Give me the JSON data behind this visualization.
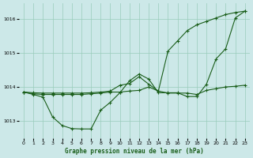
{
  "xlabel": "Graphe pression niveau de la mer (hPa)",
  "ylim": [
    1012.5,
    1016.45
  ],
  "xlim": [
    -0.5,
    23.5
  ],
  "yticks": [
    1013,
    1014,
    1015,
    1016
  ],
  "xticks": [
    0,
    1,
    2,
    3,
    4,
    5,
    6,
    7,
    8,
    9,
    10,
    11,
    12,
    13,
    14,
    15,
    16,
    17,
    18,
    19,
    20,
    21,
    22,
    23
  ],
  "bg_color": "#cce8e8",
  "grid_color": "#99ccbb",
  "line_color": "#1a5e1a",
  "line_A_x": [
    0,
    1,
    2,
    3,
    4,
    5,
    6,
    7,
    8,
    9,
    10,
    11,
    12,
    13,
    14,
    15,
    16,
    17,
    18,
    19,
    20,
    21,
    22,
    23
  ],
  "line_A_y": [
    1013.85,
    1013.78,
    1013.7,
    1013.12,
    1012.87,
    1012.78,
    1012.77,
    1012.77,
    1013.32,
    1013.55,
    1013.83,
    1014.18,
    1014.38,
    1014.23,
    1013.83,
    1013.83,
    1013.83,
    1013.72,
    1013.72,
    1014.08,
    1014.82,
    1015.12,
    1016.02,
    1016.22
  ],
  "line_B_x": [
    0,
    1,
    2,
    3,
    4,
    5,
    6,
    7,
    8,
    9,
    10,
    11,
    12,
    13,
    14,
    15,
    16,
    17,
    18,
    19,
    20,
    21,
    22,
    23
  ],
  "line_B_y": [
    1013.85,
    1013.8,
    1013.78,
    1013.78,
    1013.78,
    1013.78,
    1013.78,
    1013.8,
    1013.82,
    1013.85,
    1013.85,
    1013.88,
    1013.9,
    1014.0,
    1013.88,
    1013.82,
    1013.82,
    1013.82,
    1013.78,
    1013.9,
    1013.95,
    1014.0,
    1014.02,
    1014.05
  ],
  "line_C_x": [
    0,
    1,
    2,
    3,
    4,
    5,
    6,
    7,
    8,
    9,
    10,
    11,
    12,
    13,
    14,
    15,
    16,
    17,
    18,
    19,
    20,
    21,
    22,
    23
  ],
  "line_C_y": [
    1013.85,
    1013.83,
    1013.82,
    1013.82,
    1013.82,
    1013.82,
    1013.82,
    1013.83,
    1013.85,
    1013.88,
    1014.05,
    1014.1,
    1014.3,
    1014.08,
    1013.88,
    1015.05,
    1015.35,
    1015.65,
    1015.82,
    1015.92,
    1016.02,
    1016.12,
    1016.18,
    1016.22
  ]
}
